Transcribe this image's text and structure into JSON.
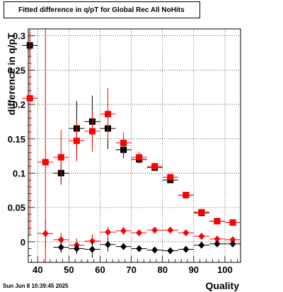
{
  "chart_data": {
    "type": "scatter",
    "title": "Fitted difference in q/pT for Global Rec All NoHits",
    "xlabel": "Quality",
    "ylabel": "difference in q/pT",
    "xlim": [
      37,
      105
    ],
    "ylim": [
      -0.03,
      0.31
    ],
    "xticks": [
      40,
      50,
      60,
      70,
      80,
      90,
      100
    ],
    "yticks": [
      0,
      0.05,
      0.1,
      0.15,
      0.2,
      0.25,
      0.3
    ],
    "ytick_labels": [
      "0",
      "0.05",
      "0.1",
      "0.15",
      "0.2",
      "0.25",
      "0.3"
    ],
    "grid": true,
    "series": [
      {
        "marker": "square",
        "color": "#000000",
        "x": [
          37.5,
          47.5,
          52.5,
          57.5,
          62.5,
          67.5,
          72.5,
          77.5,
          82.5,
          87.5,
          92.5,
          97.5,
          102.5
        ],
        "y": [
          0.286,
          0.1,
          0.165,
          0.175,
          0.165,
          0.134,
          0.12,
          0.108,
          0.09,
          0.068,
          0.042,
          0.03,
          0.028
        ],
        "err": [
          0.02,
          0.015,
          0.04,
          0.038,
          0.03,
          0.012,
          0.006,
          0.004,
          0.003,
          0.003,
          0.002,
          0.002,
          0.002
        ]
      },
      {
        "marker": "square",
        "color": "#ff0000",
        "x": [
          37.5,
          42.5,
          47.5,
          52.5,
          57.5,
          62.5,
          67.5,
          72.5,
          77.5,
          82.5,
          87.5,
          92.5,
          97.5,
          102.5
        ],
        "y": [
          0.209,
          0.116,
          0.123,
          0.147,
          0.161,
          0.186,
          0.144,
          0.123,
          0.11,
          0.094,
          0.068,
          0.043,
          0.03,
          0.028
        ],
        "err": [
          0.2,
          0.2,
          0.04,
          0.03,
          0.03,
          0.038,
          0.015,
          0.008,
          0.005,
          0.004,
          0.003,
          0.002,
          0.002,
          0.002
        ]
      },
      {
        "marker": "diamond",
        "color": "#ff0000",
        "x": [
          42.5,
          47.5,
          52.5,
          57.5,
          62.5,
          67.5,
          72.5,
          77.5,
          82.5,
          87.5,
          92.5,
          97.5,
          102.5
        ],
        "y": [
          0.012,
          0.003,
          -0.005,
          0.001,
          0.014,
          0.016,
          0.013,
          0.017,
          0.017,
          0.013,
          0.008,
          0.004,
          0.003
        ],
        "err": [
          0.02,
          0.01,
          0.01,
          0.01,
          0.008,
          0.006,
          0.003,
          0.002,
          0.002,
          0.002,
          0.001,
          0.001,
          0.001
        ]
      },
      {
        "marker": "diamond",
        "color": "#000000",
        "x": [
          47.5,
          52.5,
          57.5,
          62.5,
          67.5,
          72.5,
          77.5,
          82.5,
          87.5,
          92.5,
          97.5,
          102.5
        ],
        "y": [
          -0.008,
          -0.01,
          -0.011,
          -0.004,
          -0.007,
          -0.01,
          -0.012,
          -0.013,
          -0.011,
          -0.005,
          -0.003,
          -0.003
        ],
        "err": [
          0.008,
          0.008,
          0.012,
          0.01,
          0.004,
          0.003,
          0.002,
          0.002,
          0.002,
          0.001,
          0.001,
          0.001
        ]
      }
    ]
  },
  "footer_text": "Sun Jun  8 10:39:45 2025"
}
